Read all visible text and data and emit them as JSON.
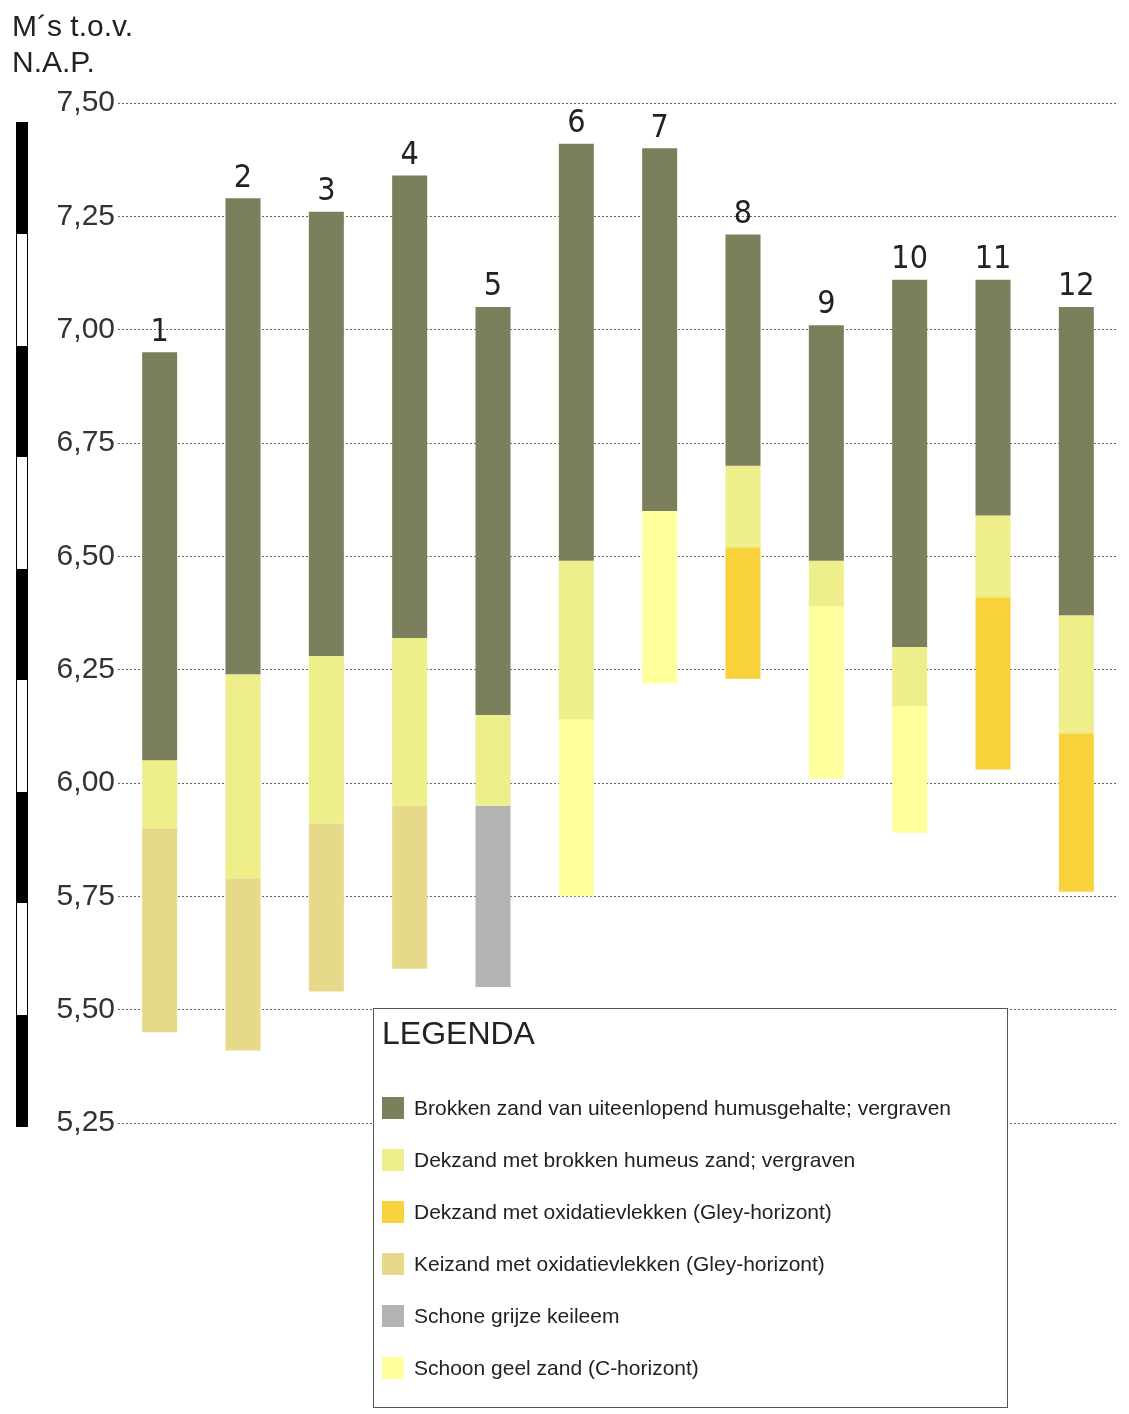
{
  "chart_data": {
    "type": "bar",
    "ylabel": "M´s t.o.v. N.A.P.",
    "legend_title": "LEGENDA",
    "legend": "bottom right",
    "grid": "y",
    "categories": [
      "1",
      "2",
      "3",
      "4",
      "5",
      "6",
      "7",
      "8",
      "9",
      "10",
      "11",
      "12"
    ],
    "ylim": [
      5.25,
      7.5
    ],
    "yticks": [
      {
        "value": 5.25,
        "label": "5,25"
      },
      {
        "value": 5.5,
        "label": "5,50"
      },
      {
        "value": 5.75,
        "label": "5,75"
      },
      {
        "value": 6,
        "label": "6,00"
      },
      {
        "value": 6.25,
        "label": "6,25"
      },
      {
        "value": 6.5,
        "label": "6,50"
      },
      {
        "value": 6.75,
        "label": "6,75"
      },
      {
        "value": 7,
        "label": "7,00"
      },
      {
        "value": 7.25,
        "label": "7,25"
      },
      {
        "value": 7.5,
        "label": "7,50"
      }
    ],
    "series": [
      {
        "name": "Brokken zand van uiteenlopend humusgehalte; vergraven",
        "color": "#7b7f5c",
        "base": [
          6.05,
          6.24,
          6.28,
          6.32,
          6.15,
          6.49,
          6.6,
          6.7,
          6.49,
          6.3,
          6.59,
          6.37
        ],
        "values": [
          0.9,
          1.05,
          0.98,
          1.02,
          0.9,
          0.92,
          0.8,
          0.51,
          0.52,
          0.81,
          0.52,
          0.68
        ]
      },
      {
        "name": "Dekzand met brokken humeus zand; vergraven",
        "color": "#eeee8a",
        "base": [
          5.9,
          5.79,
          5.91,
          5.95,
          5.95,
          6.14,
          null,
          6.52,
          6.39,
          6.17,
          6.41,
          6.11
        ],
        "values": [
          0.15,
          0.45,
          0.37,
          0.37,
          0.2,
          0.35,
          null,
          0.18,
          0.1,
          0.13,
          0.18,
          0.26
        ]
      },
      {
        "name": "Dekzand met oxidatievlekken (Gley-horizont)",
        "color": "#f8d23a",
        "base": [
          null,
          null,
          null,
          null,
          null,
          null,
          null,
          6.23,
          null,
          null,
          6.03,
          5.76
        ],
        "values": [
          null,
          null,
          null,
          null,
          null,
          null,
          null,
          0.29,
          null,
          null,
          0.38,
          0.35
        ]
      },
      {
        "name": "Keizand met oxidatievlekken (Gley-horizont)",
        "color": "#e6d98a",
        "base": [
          5.45,
          5.41,
          5.54,
          5.59,
          null,
          null,
          null,
          null,
          null,
          null,
          null,
          null
        ],
        "values": [
          0.45,
          0.38,
          0.37,
          0.36,
          null,
          null,
          null,
          null,
          null,
          null,
          null,
          null
        ]
      },
      {
        "name": "Schone grijze keileem",
        "color": "#b3b3b3",
        "base": [
          null,
          null,
          null,
          null,
          5.55,
          null,
          null,
          null,
          null,
          null,
          null,
          null
        ],
        "values": [
          null,
          null,
          null,
          null,
          0.4,
          null,
          null,
          null,
          null,
          null,
          null,
          null
        ]
      },
      {
        "name": "Schoon geel zand (C-horizont)",
        "color": "#ffff9e",
        "base": [
          null,
          null,
          null,
          null,
          null,
          5.75,
          6.22,
          null,
          6.01,
          5.89,
          null,
          null
        ],
        "values": [
          null,
          null,
          null,
          null,
          null,
          0.39,
          0.38,
          null,
          0.38,
          0.28,
          null,
          null
        ]
      }
    ]
  }
}
